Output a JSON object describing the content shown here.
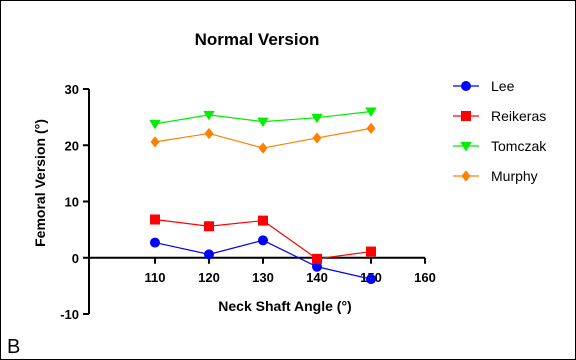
{
  "panel_label": "B",
  "chart_data": {
    "type": "line",
    "title": "Normal Version",
    "xlabel": "Neck Shaft Angle (°)",
    "ylabel": "Femoral Version (°)",
    "xlim": [
      100,
      160
    ],
    "ylim": [
      -10,
      30
    ],
    "xticks": [
      110,
      120,
      130,
      140,
      150,
      160
    ],
    "yticks": [
      -10,
      0,
      10,
      20,
      30
    ],
    "grid": false,
    "legend_position": "right",
    "x": [
      110,
      120,
      130,
      140,
      150
    ],
    "series": [
      {
        "name": "Lee",
        "color": "#0000ff",
        "marker": "circle",
        "values": [
          2.7,
          0.6,
          3.1,
          -1.6,
          -3.8
        ]
      },
      {
        "name": "Reikeras",
        "color": "#ff0000",
        "marker": "square",
        "values": [
          6.8,
          5.6,
          6.6,
          -0.2,
          1.1
        ]
      },
      {
        "name": "Tomczak",
        "color": "#00ee00",
        "marker": "triangle-down",
        "values": [
          23.8,
          25.4,
          24.2,
          24.9,
          26.0
        ]
      },
      {
        "name": "Murphy",
        "color": "#ff8000",
        "marker": "diamond",
        "values": [
          20.6,
          22.1,
          19.5,
          21.3,
          23.0
        ]
      }
    ]
  }
}
